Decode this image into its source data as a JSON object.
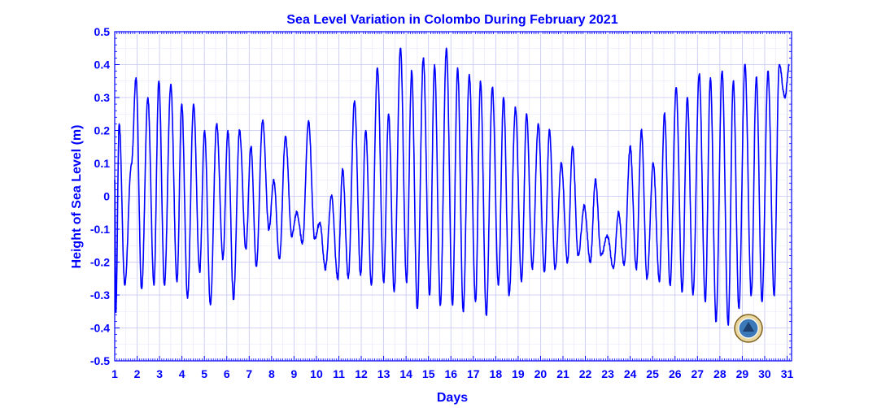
{
  "chart_data": {
    "type": "line",
    "title": "Sea Level Variation in Colombo During February 2021",
    "xlabel": "Days",
    "ylabel": "Height of Sea Level (m)",
    "xlim": [
      1,
      31.2
    ],
    "ylim": [
      -0.5,
      0.5
    ],
    "xticks": [
      "1",
      "2",
      "3",
      "4",
      "5",
      "6",
      "7",
      "8",
      "9",
      "10",
      "11",
      "12",
      "13",
      "14",
      "15",
      "16",
      "17",
      "18",
      "19",
      "20",
      "21",
      "22",
      "23",
      "24",
      "25",
      "26",
      "27",
      "28",
      "29",
      "30",
      "31"
    ],
    "yticks": [
      "0.5",
      "0.4",
      "0.3",
      "0.2",
      "0.1",
      "0",
      "-0.1",
      "-0.2",
      "-0.3",
      "-0.4",
      "-0.5"
    ],
    "grid": true,
    "color": "#0000ff",
    "logo": "tide-gauge-agency-seal",
    "series": [
      {
        "x": [
          1.0,
          1.05,
          1.2,
          1.45,
          1.75,
          1.95,
          2.2,
          2.48,
          2.75,
          2.97,
          3.22,
          3.5,
          3.78,
          3.99,
          4.25,
          4.52,
          4.79,
          5.01,
          5.27,
          5.55,
          5.83,
          6.05,
          6.3,
          6.57,
          6.85,
          7.08,
          7.32,
          7.6,
          7.88,
          8.1,
          8.35,
          8.62,
          8.9,
          9.12,
          9.38,
          9.65,
          9.92,
          10.15,
          10.4,
          10.67,
          10.95,
          11.17,
          11.42,
          11.7,
          11.97,
          12.2,
          12.45,
          12.72,
          13.0,
          13.22,
          13.47,
          13.75,
          14.02,
          14.25,
          14.5,
          14.77,
          15.05,
          15.27,
          15.53,
          15.8,
          16.07,
          16.3,
          16.55,
          16.82,
          17.1,
          17.32,
          17.58,
          17.85,
          18.12,
          18.35,
          18.6,
          18.88,
          19.15,
          19.38,
          19.63,
          19.9,
          20.17,
          20.4,
          20.65,
          20.93,
          21.2,
          21.43,
          21.68,
          21.95,
          22.22,
          22.45,
          22.7,
          22.98,
          23.25,
          23.48,
          23.73,
          24.0,
          24.27,
          24.5,
          24.75,
          25.03,
          25.3,
          25.53,
          25.78,
          26.05,
          26.32,
          26.55,
          26.8,
          27.08,
          27.35,
          27.58,
          27.83,
          28.1,
          28.37,
          28.6,
          28.85,
          29.12,
          29.4,
          29.63,
          29.88,
          30.15,
          30.42,
          30.65,
          30.9,
          31.1
        ],
        "values": [
          0.05,
          -0.35,
          0.22,
          -0.27,
          0.1,
          0.36,
          -0.28,
          0.3,
          -0.27,
          0.35,
          -0.27,
          0.34,
          -0.26,
          0.28,
          -0.31,
          0.28,
          -0.23,
          0.2,
          -0.33,
          0.22,
          -0.19,
          0.2,
          -0.31,
          0.2,
          -0.16,
          0.15,
          -0.21,
          0.23,
          -0.1,
          0.05,
          -0.19,
          0.18,
          -0.12,
          -0.05,
          -0.14,
          0.23,
          -0.13,
          -0.08,
          -0.22,
          0.0,
          -0.25,
          0.08,
          -0.25,
          0.29,
          -0.24,
          0.2,
          -0.27,
          0.39,
          -0.26,
          0.25,
          -0.29,
          0.45,
          -0.26,
          0.38,
          -0.34,
          0.42,
          -0.3,
          0.4,
          -0.33,
          0.45,
          -0.33,
          0.39,
          -0.35,
          0.37,
          -0.32,
          0.35,
          -0.36,
          0.33,
          -0.27,
          0.3,
          -0.3,
          0.27,
          -0.26,
          0.25,
          -0.22,
          0.22,
          -0.23,
          0.2,
          -0.22,
          0.1,
          -0.2,
          0.15,
          -0.18,
          -0.03,
          -0.2,
          0.05,
          -0.18,
          -0.12,
          -0.22,
          -0.05,
          -0.21,
          0.15,
          -0.22,
          0.2,
          -0.25,
          0.1,
          -0.26,
          0.25,
          -0.27,
          0.33,
          -0.29,
          0.3,
          -0.3,
          0.37,
          -0.32,
          0.36,
          -0.38,
          0.38,
          -0.39,
          0.35,
          -0.34,
          0.4,
          -0.3,
          0.36,
          -0.32,
          0.38,
          -0.3,
          0.4,
          0.3,
          0.4
        ]
      }
    ]
  }
}
